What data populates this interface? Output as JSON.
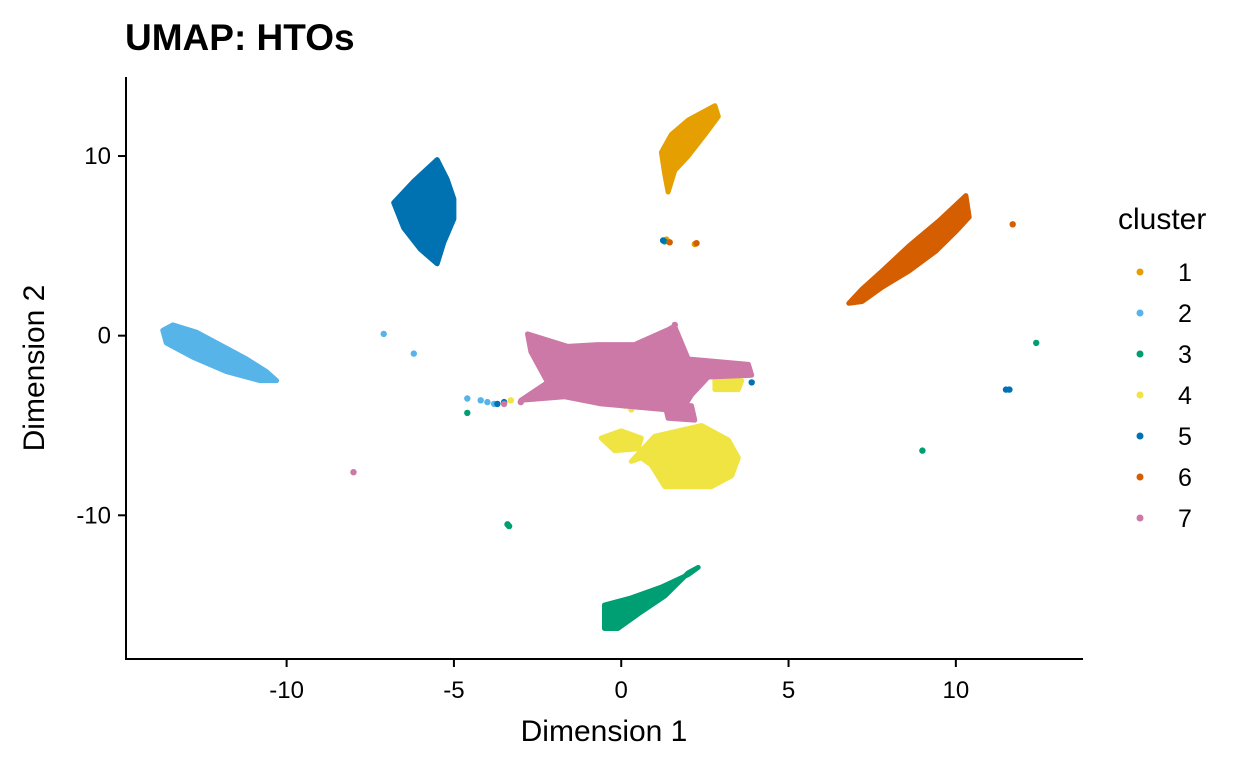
{
  "chart_data": {
    "type": "scatter",
    "title": "UMAP: HTOs",
    "xlabel": "Dimension 1",
    "ylabel": "Dimension 2",
    "xlim": [
      -14.8,
      13.8
    ],
    "ylim": [
      -18,
      14.4
    ],
    "xticks": [
      -10,
      -5,
      0,
      5,
      10
    ],
    "yticks": [
      -10,
      0,
      10
    ],
    "xtick_labels": [
      "-10",
      "-5",
      "0",
      "5",
      "10"
    ],
    "ytick_labels": [
      "-10",
      "0",
      "10"
    ],
    "grid": false,
    "legend": {
      "title": "cluster",
      "position": "right"
    },
    "series": [
      {
        "name": "1",
        "color": "#E69F00",
        "blobs": [
          {
            "points": [
              [
                1.2,
                10.2
              ],
              [
                1.5,
                11.2
              ],
              [
                2.0,
                12.0
              ],
              [
                2.8,
                12.8
              ],
              [
                2.9,
                12.2
              ],
              [
                2.5,
                11.2
              ],
              [
                2.0,
                10.0
              ],
              [
                1.6,
                9.2
              ],
              [
                1.4,
                8.0
              ],
              [
                1.3,
                9.0
              ]
            ]
          }
        ],
        "points": [
          [
            1.3,
            5.3
          ],
          [
            2.2,
            5.1
          ],
          [
            1.35,
            5.35
          ]
        ]
      },
      {
        "name": "2",
        "color": "#56B4E9",
        "blobs": [
          {
            "points": [
              [
                -13.7,
                0.3
              ],
              [
                -13.4,
                0.6
              ],
              [
                -12.7,
                0.2
              ],
              [
                -12.0,
                -0.5
              ],
              [
                -11.2,
                -1.3
              ],
              [
                -10.6,
                -2.0
              ],
              [
                -10.3,
                -2.5
              ],
              [
                -10.8,
                -2.5
              ],
              [
                -11.8,
                -2.0
              ],
              [
                -12.8,
                -1.2
              ],
              [
                -13.6,
                -0.4
              ]
            ]
          }
        ],
        "points": [
          [
            -7.1,
            0.1
          ],
          [
            -4.6,
            -3.5
          ],
          [
            -4.2,
            -3.6
          ],
          [
            -4.0,
            -3.7
          ],
          [
            -3.8,
            -3.8
          ],
          [
            -6.2,
            -1.0
          ]
        ]
      },
      {
        "name": "3",
        "color": "#009E73",
        "blobs": [
          {
            "points": [
              [
                -0.5,
                -16.3
              ],
              [
                -0.5,
                -15.0
              ],
              [
                0.3,
                -14.6
              ],
              [
                1.2,
                -14.0
              ],
              [
                2.0,
                -13.3
              ],
              [
                2.3,
                -12.9
              ],
              [
                2.0,
                -13.2
              ],
              [
                1.3,
                -14.5
              ],
              [
                0.5,
                -15.5
              ],
              [
                -0.1,
                -16.3
              ]
            ]
          }
        ],
        "points": [
          [
            -3.4,
            -10.5
          ],
          [
            -3.35,
            -10.6
          ],
          [
            12.4,
            -0.4
          ],
          [
            9.0,
            -6.4
          ],
          [
            -4.6,
            -4.3
          ],
          [
            1.3,
            5.25
          ]
        ]
      },
      {
        "name": "4",
        "color": "#F0E442",
        "blobs": [
          {
            "points": [
              [
                0.3,
                -7.0
              ],
              [
                1.0,
                -5.6
              ],
              [
                2.4,
                -5.0
              ],
              [
                3.2,
                -5.8
              ],
              [
                3.5,
                -6.8
              ],
              [
                3.3,
                -7.8
              ],
              [
                2.7,
                -8.4
              ],
              [
                1.3,
                -8.4
              ],
              [
                0.9,
                -7.2
              ],
              [
                0.6,
                -6.8
              ]
            ]
          },
          {
            "points": [
              [
                -0.6,
                -5.7
              ],
              [
                0.0,
                -5.3
              ],
              [
                0.6,
                -5.7
              ],
              [
                0.5,
                -6.3
              ],
              [
                -0.2,
                -6.4
              ]
            ]
          },
          {
            "points": [
              [
                2.8,
                -2.4
              ],
              [
                3.6,
                -2.5
              ],
              [
                3.5,
                -3.0
              ],
              [
                2.8,
                -3.0
              ]
            ]
          }
        ],
        "points": [
          [
            -2.6,
            -3.5
          ],
          [
            -3.3,
            -3.6
          ],
          [
            0.1,
            -3.9
          ],
          [
            0.3,
            -4.1
          ]
        ]
      },
      {
        "name": "5",
        "color": "#0072B2",
        "blobs": [
          {
            "points": [
              [
                -6.8,
                7.4
              ],
              [
                -6.2,
                8.6
              ],
              [
                -5.5,
                9.8
              ],
              [
                -5.2,
                8.7
              ],
              [
                -5.0,
                7.6
              ],
              [
                -5.0,
                6.5
              ],
              [
                -5.3,
                5.2
              ],
              [
                -5.5,
                4.0
              ],
              [
                -6.0,
                4.8
              ],
              [
                -6.5,
                6.0
              ]
            ]
          }
        ],
        "points": [
          [
            11.5,
            -3.0
          ],
          [
            11.6,
            -3.0
          ],
          [
            -3.5,
            -3.7
          ],
          [
            -3.7,
            -3.8
          ],
          [
            3.9,
            -2.6
          ],
          [
            1.25,
            5.3
          ]
        ]
      },
      {
        "name": "6",
        "color": "#D55E00",
        "blobs": [
          {
            "points": [
              [
                6.8,
                1.8
              ],
              [
                7.2,
                2.6
              ],
              [
                7.8,
                3.6
              ],
              [
                8.6,
                5.0
              ],
              [
                9.5,
                6.4
              ],
              [
                10.3,
                7.8
              ],
              [
                10.4,
                6.6
              ],
              [
                10.0,
                5.8
              ],
              [
                9.4,
                4.7
              ],
              [
                8.6,
                3.6
              ],
              [
                7.8,
                2.7
              ],
              [
                7.2,
                1.9
              ]
            ]
          }
        ],
        "points": [
          [
            11.7,
            6.2
          ],
          [
            1.45,
            5.2
          ],
          [
            2.25,
            5.15
          ]
        ]
      },
      {
        "name": "7",
        "color": "#CC79A7",
        "blobs": [
          {
            "points": [
              [
                -2.8,
                0.1
              ],
              [
                -1.6,
                -0.6
              ],
              [
                -0.7,
                -0.5
              ],
              [
                0.4,
                -0.5
              ],
              [
                1.6,
                0.5
              ],
              [
                2.0,
                -1.3
              ],
              [
                3.8,
                -1.6
              ],
              [
                3.9,
                -2.2
              ],
              [
                2.6,
                -2.3
              ],
              [
                2.1,
                -3.3
              ],
              [
                1.8,
                -4.2
              ],
              [
                0.6,
                -4.0
              ],
              [
                -0.6,
                -3.8
              ],
              [
                -1.7,
                -3.4
              ],
              [
                -3.0,
                -3.6
              ],
              [
                -2.2,
                -2.6
              ],
              [
                -2.7,
                -0.9
              ]
            ]
          },
          {
            "points": [
              [
                1.3,
                -3.8
              ],
              [
                2.1,
                -3.9
              ],
              [
                2.2,
                -4.7
              ],
              [
                1.4,
                -4.6
              ]
            ]
          }
        ],
        "points": [
          [
            -8.0,
            -7.6
          ],
          [
            -3.0,
            -3.7
          ],
          [
            -3.5,
            -3.8
          ],
          [
            1.6,
            0.6
          ],
          [
            1.5,
            0.4
          ]
        ]
      }
    ]
  }
}
